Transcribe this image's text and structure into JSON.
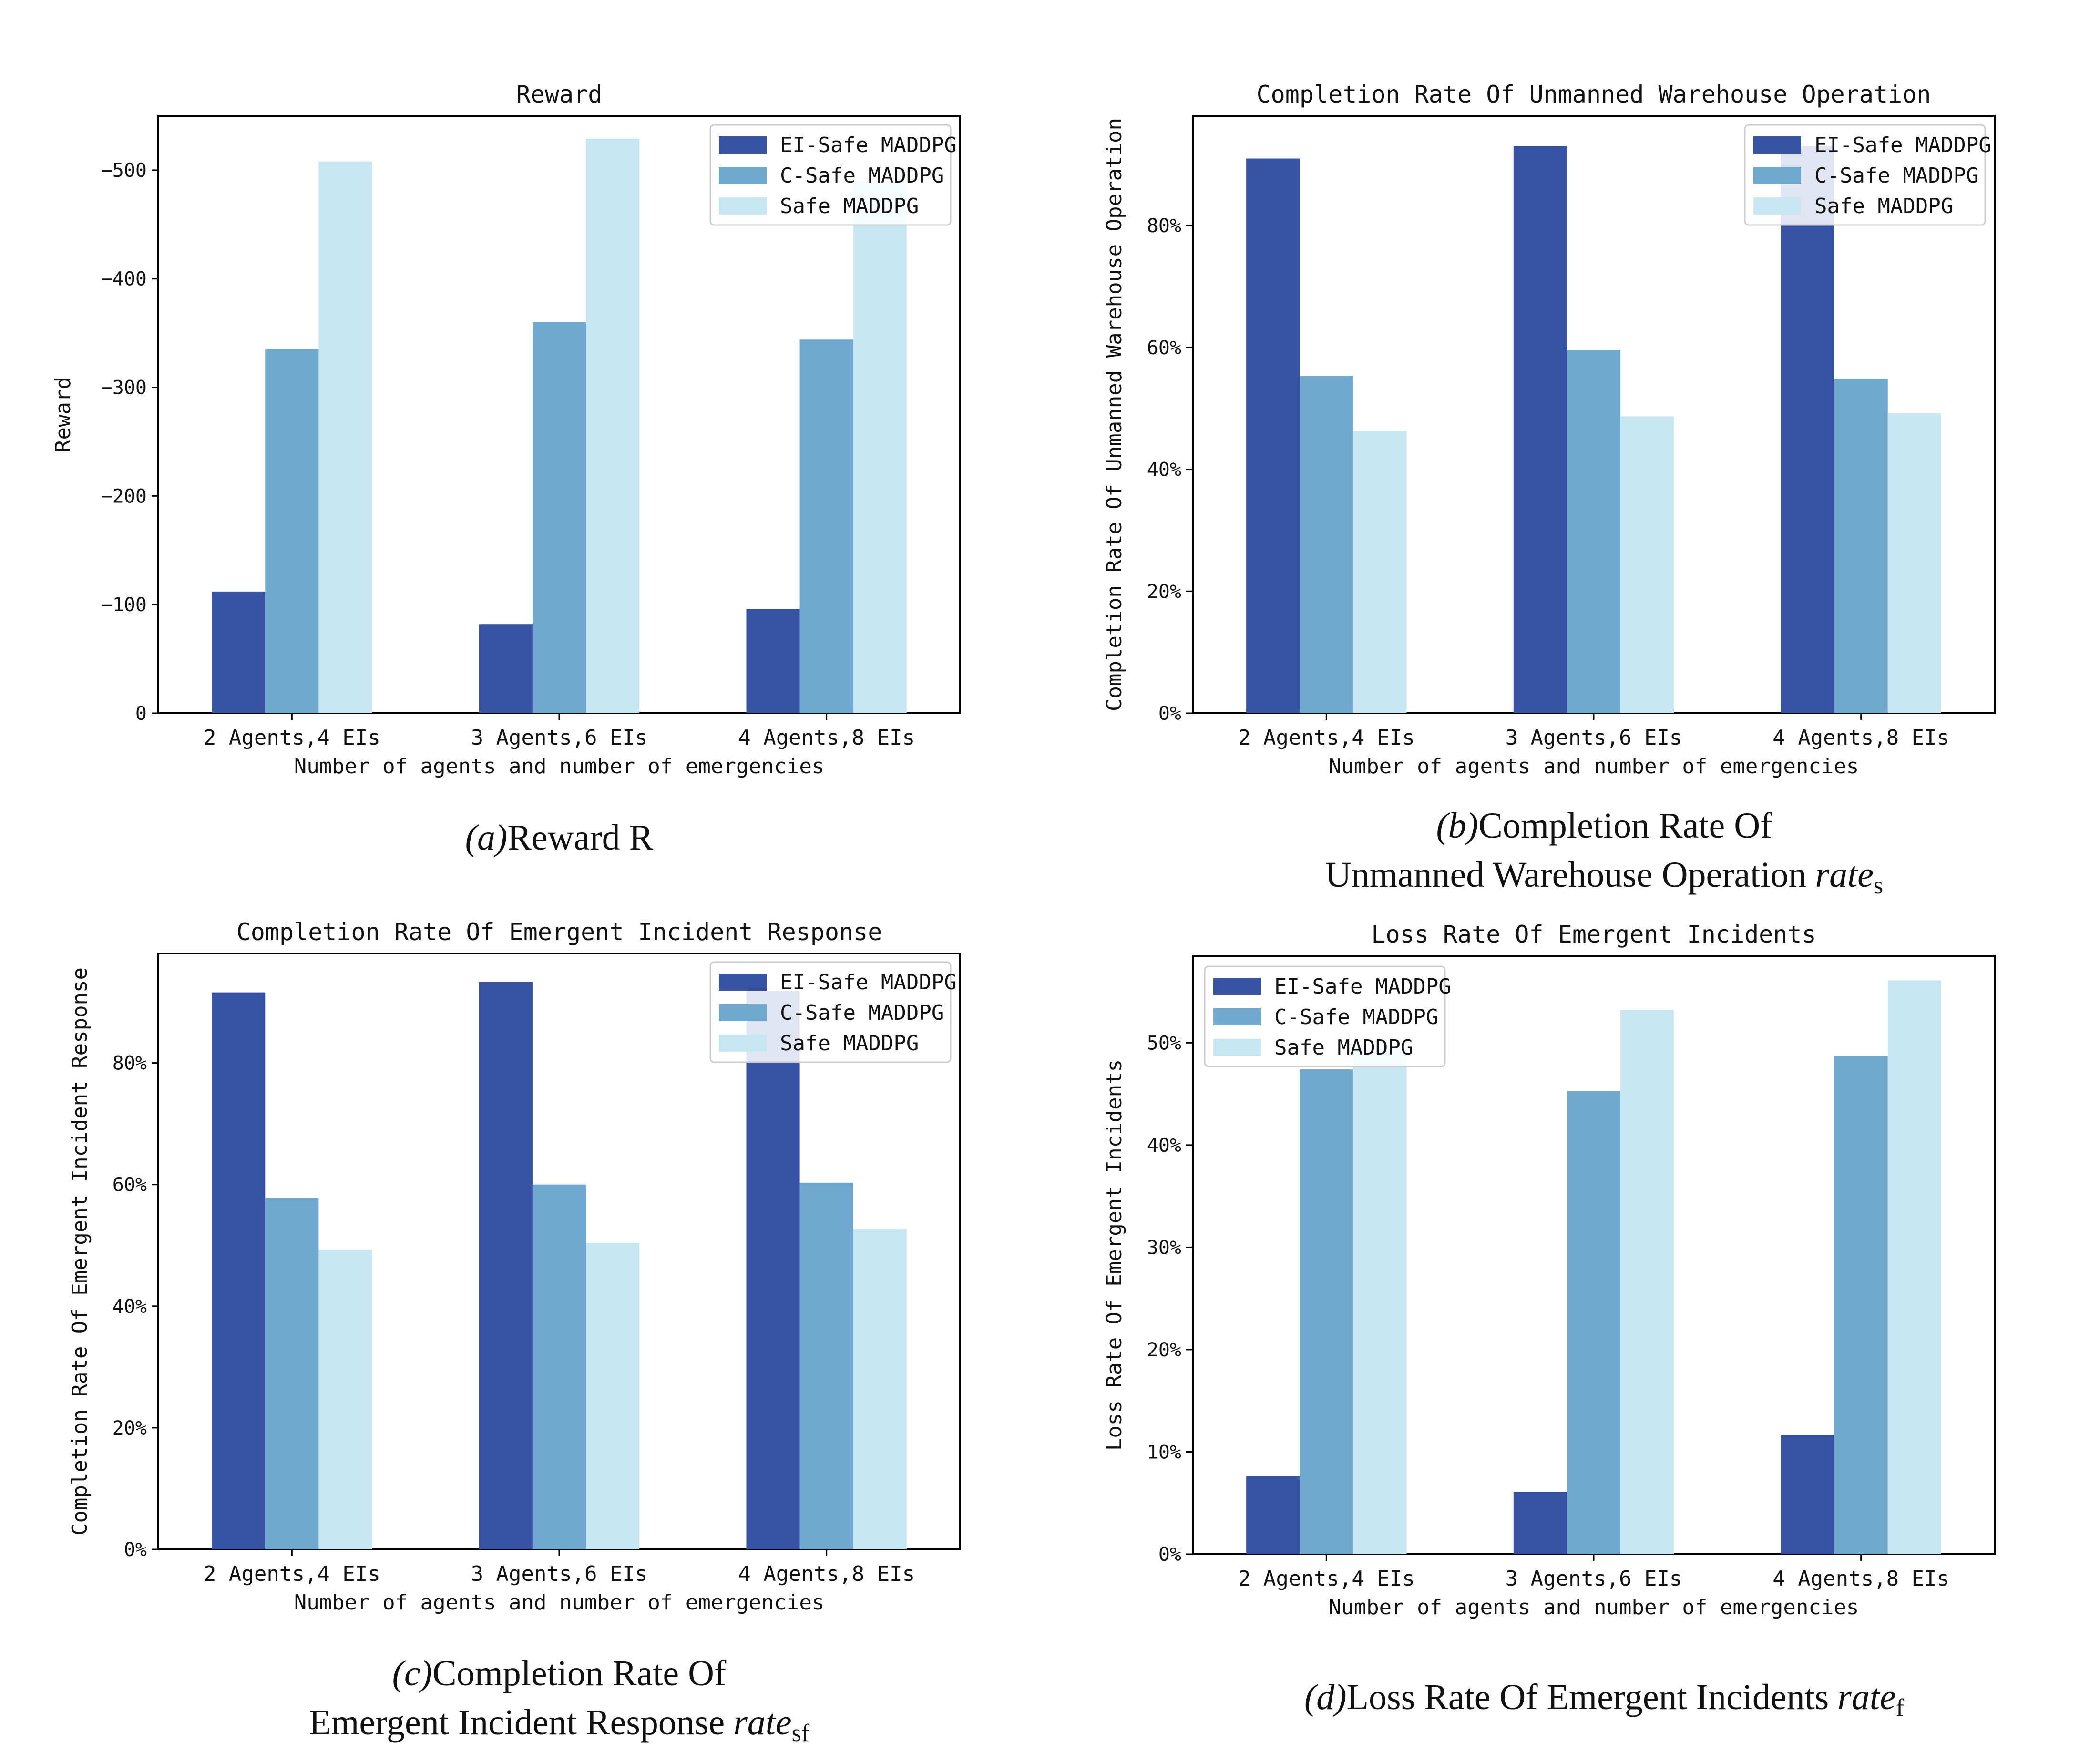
{
  "series_colors": [
    "#3953a4",
    "#70a8cf",
    "#c8e6f1"
  ],
  "panels": [
    {
      "caption": {
        "label": "(a)",
        "line1": "Reward R",
        "line2": "",
        "sym": "",
        "sub": ""
      },
      "chart_data": {
        "type": "bar",
        "title": "Reward",
        "xlabel": "Number of agents and number of emergencies",
        "ylabel": "Reward",
        "categories": [
          "2 Agents,4 EIs",
          "3 Agents,6 EIs",
          "4 Agents,8 EIs"
        ],
        "ylim": [
          0,
          550
        ],
        "yticks": [
          0,
          100,
          200,
          300,
          400,
          500
        ],
        "ytick_labels": [
          "0",
          "−100",
          "−200",
          "−300",
          "−400",
          "−500"
        ],
        "legend": "top-right",
        "series": [
          {
            "name": "EI-Safe MADDPG",
            "values": [
              -112,
              -82,
              -96
            ]
          },
          {
            "name": "C-Safe MADDPG",
            "values": [
              -335,
              -360,
              -344
            ]
          },
          {
            "name": "Safe MADDPG",
            "values": [
              -508,
              -529,
              -490
            ]
          }
        ]
      }
    },
    {
      "caption": {
        "label": "(b)",
        "line1": "Completion Rate Of",
        "line2": "Unmanned Warehouse Operation",
        "sym": "rate",
        "sub": "s"
      },
      "chart_data": {
        "type": "bar",
        "title": "Completion Rate Of Unmanned Warehouse Operation",
        "xlabel": "Number of agents and number of emergencies",
        "ylabel": "Completion Rate Of Unmanned Warehouse Operation",
        "categories": [
          "2 Agents,4 EIs",
          "3 Agents,6 EIs",
          "4 Agents,8 EIs"
        ],
        "ylim": [
          0,
          98
        ],
        "yticks": [
          0,
          20,
          40,
          60,
          80
        ],
        "ytick_labels": [
          "0%",
          "20%",
          "40%",
          "60%",
          "80%"
        ],
        "legend": "top-right",
        "series": [
          {
            "name": "EI-Safe MADDPG",
            "values": [
              91,
              93,
              93
            ]
          },
          {
            "name": "C-Safe MADDPG",
            "values": [
              55.3,
              59.6,
              54.9
            ]
          },
          {
            "name": "Safe MADDPG",
            "values": [
              46.3,
              48.7,
              49.2
            ]
          }
        ]
      }
    },
    {
      "caption": {
        "label": "(c)",
        "line1": "Completion Rate Of",
        "line2": "Emergent Incident Response",
        "sym": "rate",
        "sub": "sf"
      },
      "chart_data": {
        "type": "bar",
        "title": "Completion Rate Of Emergent Incident Response",
        "xlabel": "Number of agents and number of emergencies",
        "ylabel": "Completion Rate Of Emergent Incident Response",
        "categories": [
          "2 Agents,4 EIs",
          "3 Agents,6 EIs",
          "4 Agents,8 EIs"
        ],
        "ylim": [
          0,
          98
        ],
        "yticks": [
          0,
          20,
          40,
          60,
          80
        ],
        "ytick_labels": [
          "0%",
          "20%",
          "40%",
          "60%",
          "80%"
        ],
        "legend": "top-right",
        "series": [
          {
            "name": "EI-Safe MADDPG",
            "values": [
              91.6,
              93.3,
              91.8
            ]
          },
          {
            "name": "C-Safe MADDPG",
            "values": [
              57.8,
              60,
              60.3
            ]
          },
          {
            "name": "Safe MADDPG",
            "values": [
              49.3,
              50.4,
              52.7
            ]
          }
        ]
      }
    },
    {
      "caption": {
        "label": "(d)",
        "line1": "Loss Rate Of Emergent Incidents",
        "line2": "",
        "sym": "rate",
        "sub": "f"
      },
      "chart_data": {
        "type": "bar",
        "title": "Loss Rate Of Emergent Incidents",
        "xlabel": "Number of agents and number of emergencies",
        "ylabel": "Loss Rate Of Emergent Incidents",
        "categories": [
          "2 Agents,4 EIs",
          "3 Agents,6 EIs",
          "4 Agents,8 EIs"
        ],
        "ylim": [
          0,
          58.5
        ],
        "yticks": [
          0,
          10,
          20,
          30,
          40,
          50
        ],
        "ytick_labels": [
          "0%",
          "10%",
          "20%",
          "30%",
          "40%",
          "50%"
        ],
        "legend": "top-left",
        "series": [
          {
            "name": "EI-Safe MADDPG",
            "values": [
              7.6,
              6.1,
              11.7
            ]
          },
          {
            "name": "C-Safe MADDPG",
            "values": [
              47.4,
              45.3,
              48.7
            ]
          },
          {
            "name": "Safe MADDPG",
            "values": [
              49.4,
              53.2,
              56.1
            ]
          }
        ]
      }
    }
  ]
}
